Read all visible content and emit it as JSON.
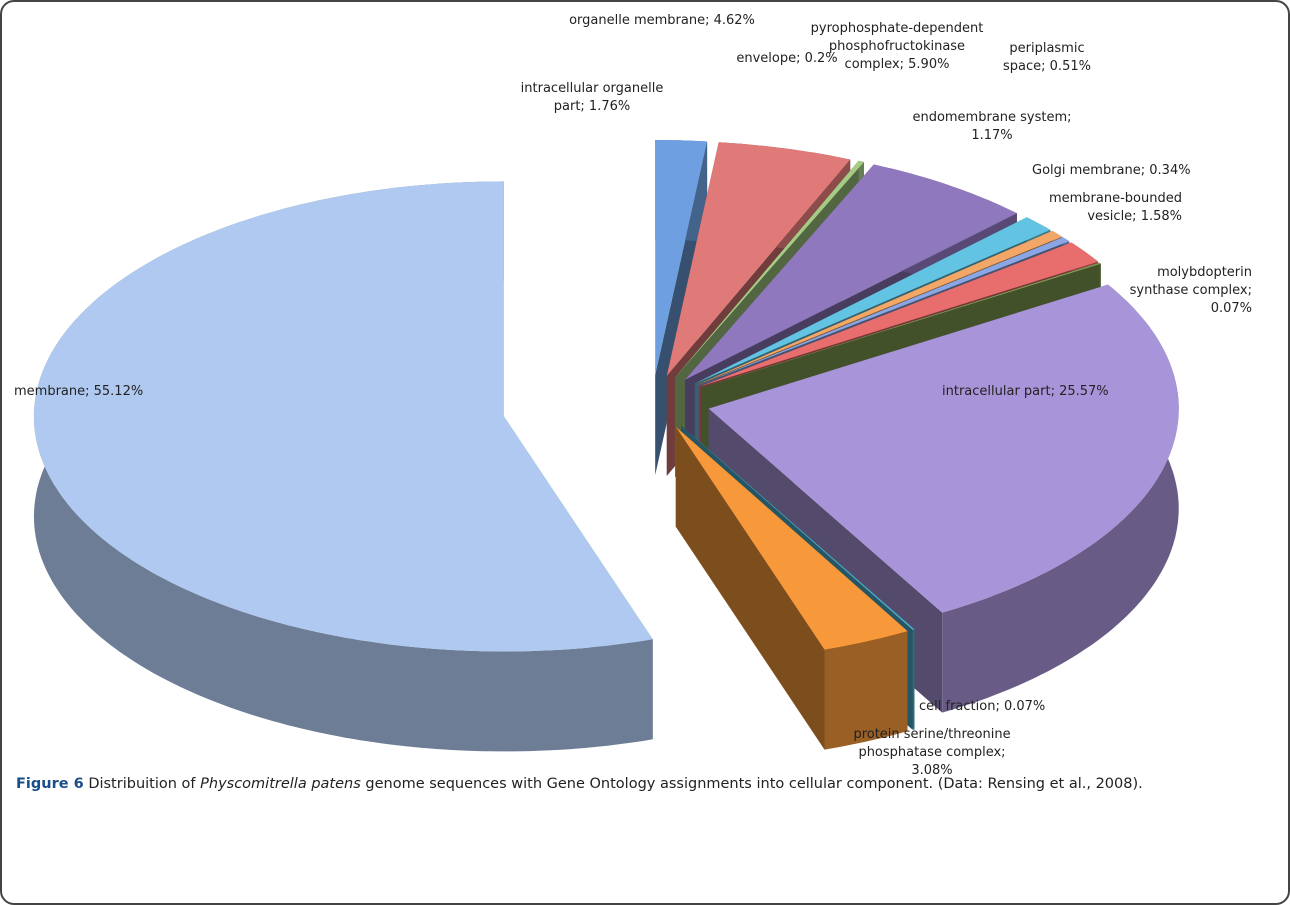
{
  "chart_data": {
    "type": "pie",
    "value_labels": [
      "intracellular organelle part; 1.76%",
      "organelle membrane; 4.62%",
      "envelope; 0.2%",
      "pyrophosphate-dependent phosphofructokinase complex; 5.90%",
      "endomembrane system; 1.17%",
      "periplasmic space; 0.51%",
      "Golgi membrane; 0.34%",
      "membrane-bounded vesicle; 1.58%",
      "molybdopterin synthase complex; 0.07%",
      "intracellular part; 25.57%",
      "cell fraction; 0.07%",
      "protein serine/threonine phosphatase complex; 3.08%",
      "membrane; 55.12%"
    ],
    "values": [
      1.76,
      4.62,
      0.2,
      5.9,
      1.17,
      0.51,
      0.34,
      1.58,
      0.07,
      25.57,
      0.07,
      3.08,
      55.12
    ],
    "colors": [
      "#6e9fe0",
      "#e07a78",
      "#a6cb84",
      "#8f78bd",
      "#62c3e2",
      "#f2a766",
      "#8aa6e4",
      "#e86e6e",
      "#86a155",
      "#a894d8",
      "#4bacc6",
      "#f7993a",
      "#b0c9f0"
    ]
  },
  "caption": {
    "label": "Figure 6",
    "text_before": "Distribuition of",
    "italic": "Physcomitrella patens",
    "text_after": "genome sequences with Gene Ontology assignments into cellular component. (Data: Rensing et al., 2008)."
  }
}
